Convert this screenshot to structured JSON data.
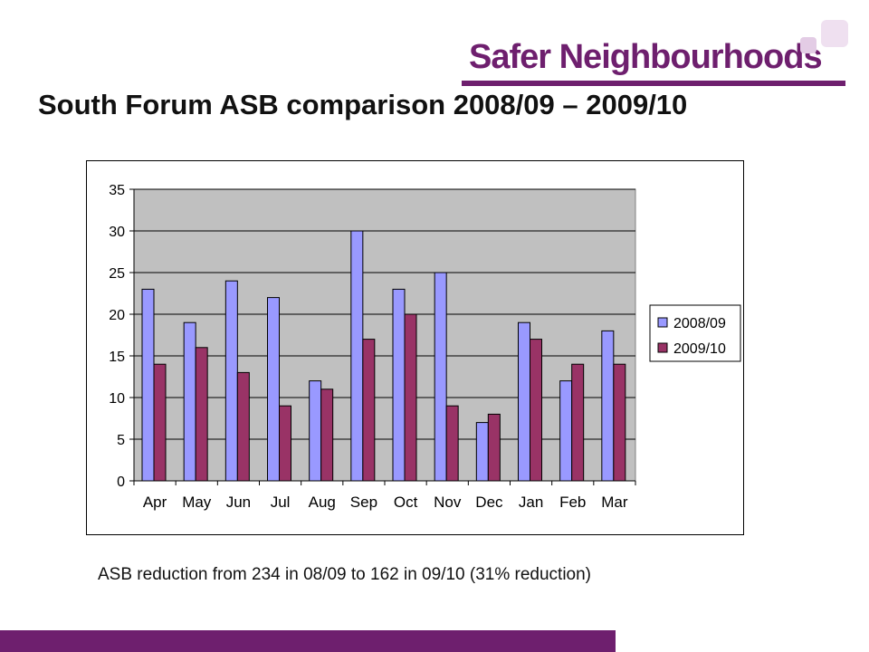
{
  "brand": {
    "name": "Safer Neighbourhoods",
    "color": "#6e1f6e",
    "square_colors": [
      "#e3cce5",
      "#efe0f0"
    ]
  },
  "title": "South Forum ASB comparison 2008/09 – 2009/10",
  "caption": "ASB reduction from 234 in 08/09 to 162 in 09/10 (31% reduction)",
  "chart_data": {
    "type": "bar",
    "title": "",
    "xlabel": "",
    "ylabel": "",
    "categories": [
      "Apr",
      "May",
      "Jun",
      "Jul",
      "Aug",
      "Sep",
      "Oct",
      "Nov",
      "Dec",
      "Jan",
      "Feb",
      "Mar"
    ],
    "series": [
      {
        "name": "2008/09",
        "color": "#9999ff",
        "values": [
          23,
          19,
          24,
          22,
          12,
          30,
          23,
          25,
          7,
          19,
          12,
          18
        ]
      },
      {
        "name": "2009/10",
        "color": "#993366",
        "values": [
          14,
          16,
          13,
          9,
          11,
          17,
          20,
          9,
          8,
          17,
          14,
          14
        ]
      }
    ],
    "ylim": [
      0,
      35
    ],
    "yticks": [
      0,
      5,
      10,
      15,
      20,
      25,
      30,
      35
    ],
    "grid": true,
    "plot_background": "#c0c0c0",
    "legend": "right"
  }
}
